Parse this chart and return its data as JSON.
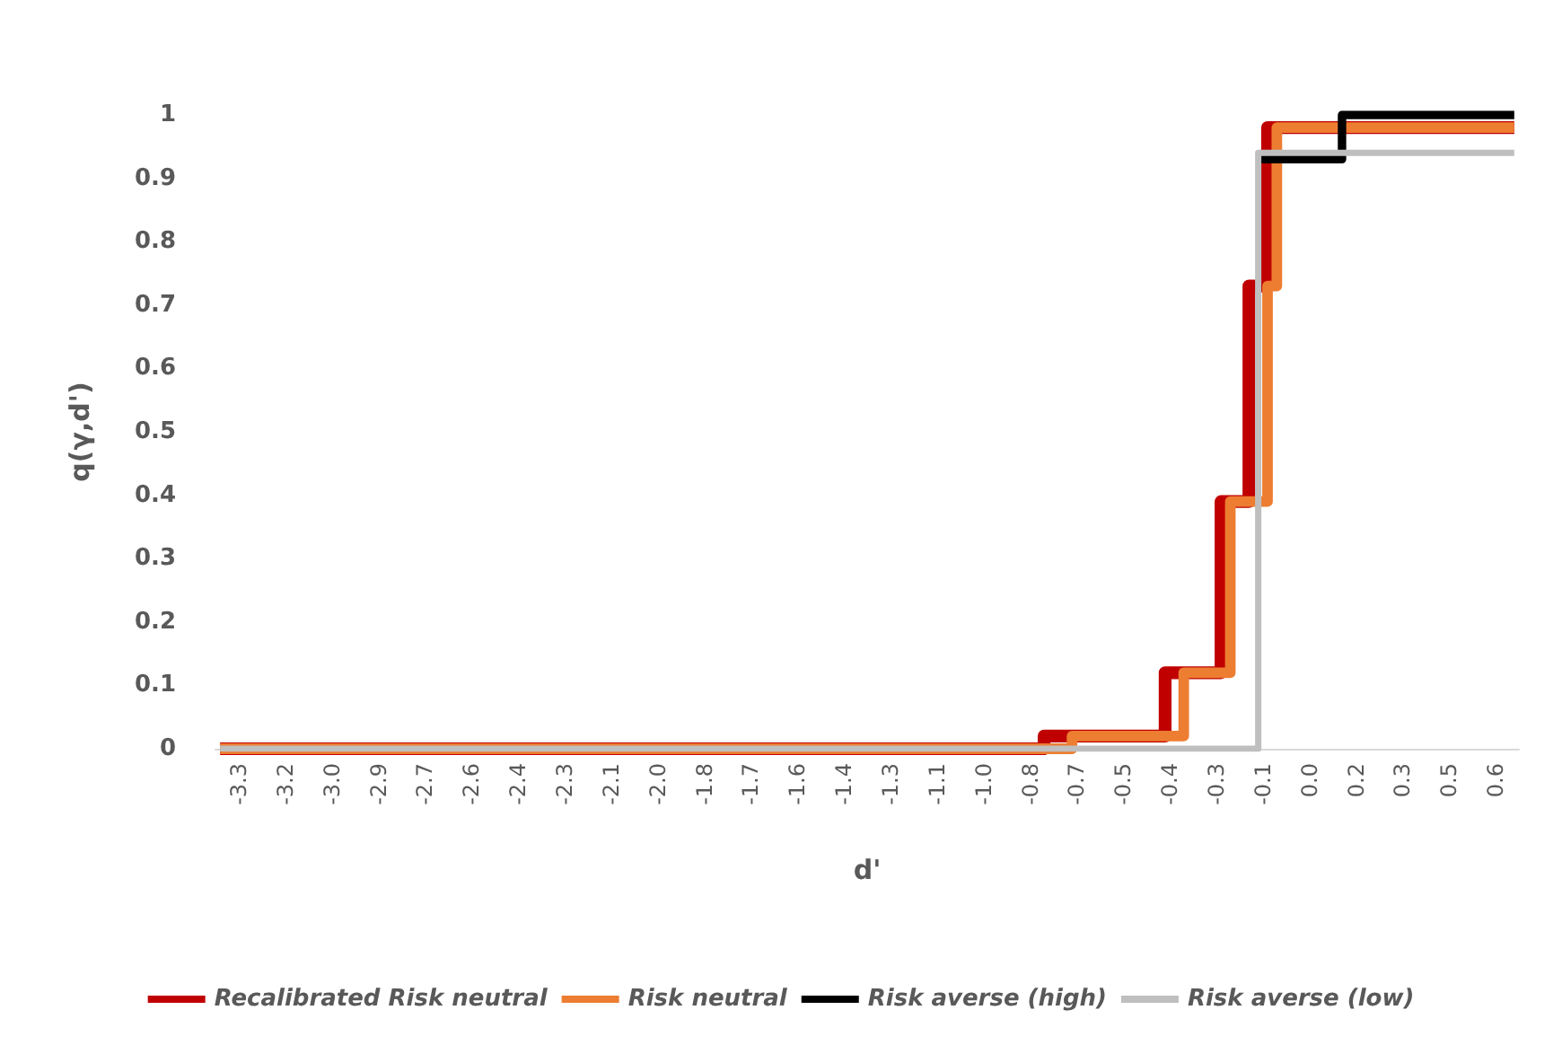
{
  "chart_data": {
    "type": "step",
    "xlabel": "d'",
    "ylabel": "q(γ,d')",
    "categories": [
      null,
      null,
      "-3.3",
      null,
      null,
      null,
      null,
      "-3.2",
      null,
      null,
      null,
      null,
      "-3.0",
      null,
      null,
      null,
      null,
      "-2.9",
      null,
      null,
      null,
      null,
      "-2.7",
      null,
      null,
      null,
      null,
      "-2.6",
      null,
      null,
      null,
      null,
      "-2.4",
      null,
      null,
      null,
      null,
      "-2.3",
      null,
      null,
      null,
      null,
      "-2.1",
      null,
      null,
      null,
      null,
      "-2.0",
      null,
      null,
      null,
      null,
      "-1.8",
      null,
      null,
      null,
      null,
      "-1.7",
      null,
      null,
      null,
      null,
      "-1.6",
      null,
      null,
      null,
      null,
      "-1.4",
      null,
      null,
      null,
      null,
      "-1.3",
      null,
      null,
      null,
      null,
      "-1.1",
      null,
      null,
      null,
      null,
      "-1.0",
      null,
      null,
      null,
      null,
      "-0.8",
      null,
      null,
      null,
      null,
      "-0.7",
      null,
      null,
      null,
      null,
      "-0.5",
      null,
      null,
      null,
      null,
      "-0.4",
      null,
      null,
      null,
      null,
      "-0.3",
      null,
      null,
      null,
      null,
      "-0.1",
      null,
      null,
      null,
      null,
      "0.0",
      null,
      null,
      null,
      null,
      "0.2",
      null,
      null,
      null,
      null,
      "0.3",
      null,
      null,
      null,
      null,
      "0.5",
      null,
      null,
      null,
      null,
      "0.6",
      null,
      null
    ],
    "series": [
      {
        "name": "Recalibrated Risk neutral",
        "color": "#c00000",
        "values": [
          0,
          0,
          0,
          0,
          0,
          0,
          0,
          0,
          0,
          0,
          0,
          0,
          0,
          0,
          0,
          0,
          0,
          0,
          0,
          0,
          0,
          0,
          0,
          0,
          0,
          0,
          0,
          0,
          0,
          0,
          0,
          0,
          0,
          0,
          0,
          0,
          0,
          0,
          0,
          0,
          0,
          0,
          0,
          0,
          0,
          0,
          0,
          0,
          0,
          0,
          0,
          0,
          0,
          0,
          0,
          0,
          0,
          0,
          0,
          0,
          0,
          0,
          0,
          0,
          0,
          0,
          0,
          0,
          0,
          0,
          0,
          0,
          0,
          0,
          0,
          0,
          0,
          0,
          0,
          0,
          0,
          0,
          0,
          0,
          0,
          0,
          0,
          0,
          0,
          0.02,
          0.02,
          0.02,
          0.02,
          0.02,
          0.02,
          0.02,
          0.02,
          0.02,
          0.02,
          0.02,
          0.02,
          0.02,
          0.12,
          0.12,
          0.12,
          0.12,
          0.12,
          0.12,
          0.39,
          0.39,
          0.39,
          0.73,
          0.73,
          0.98,
          0.98,
          0.98,
          0.98,
          0.98,
          0.98,
          0.98,
          0.98,
          0.98,
          0.98,
          0.98,
          0.98,
          0.98,
          0.98,
          0.98,
          0.98,
          0.98,
          0.98,
          0.98,
          0.98,
          0.98,
          0.98,
          0.98,
          0.98,
          0.98,
          0.98,
          0.98
        ]
      },
      {
        "name": "Risk neutral",
        "color": "#ed7d31",
        "values": [
          0,
          0,
          0,
          0,
          0,
          0,
          0,
          0,
          0,
          0,
          0,
          0,
          0,
          0,
          0,
          0,
          0,
          0,
          0,
          0,
          0,
          0,
          0,
          0,
          0,
          0,
          0,
          0,
          0,
          0,
          0,
          0,
          0,
          0,
          0,
          0,
          0,
          0,
          0,
          0,
          0,
          0,
          0,
          0,
          0,
          0,
          0,
          0,
          0,
          0,
          0,
          0,
          0,
          0,
          0,
          0,
          0,
          0,
          0,
          0,
          0,
          0,
          0,
          0,
          0,
          0,
          0,
          0,
          0,
          0,
          0,
          0,
          0,
          0,
          0,
          0,
          0,
          0,
          0,
          0,
          0,
          0,
          0,
          0,
          0,
          0,
          0,
          0,
          0,
          0,
          0,
          0,
          0.02,
          0.02,
          0.02,
          0.02,
          0.02,
          0.02,
          0.02,
          0.02,
          0.02,
          0.02,
          0.02,
          0.02,
          0.12,
          0.12,
          0.12,
          0.12,
          0.12,
          0.39,
          0.39,
          0.39,
          0.39,
          0.73,
          0.98,
          0.98,
          0.98,
          0.98,
          0.98,
          0.98,
          0.98,
          0.98,
          0.98,
          0.98,
          0.98,
          0.98,
          0.98,
          0.98,
          0.98,
          0.98,
          0.98,
          0.98,
          0.98,
          0.98,
          0.98,
          0.98,
          0.98,
          0.98,
          0.98,
          0.98
        ]
      },
      {
        "name": "Risk averse (high)",
        "color": "#000000",
        "values": [
          null,
          null,
          null,
          null,
          null,
          null,
          null,
          null,
          null,
          null,
          null,
          null,
          null,
          null,
          null,
          null,
          null,
          null,
          null,
          null,
          null,
          null,
          null,
          null,
          null,
          null,
          null,
          null,
          null,
          null,
          null,
          null,
          null,
          null,
          null,
          null,
          null,
          null,
          null,
          null,
          null,
          null,
          null,
          null,
          null,
          null,
          null,
          null,
          null,
          null,
          null,
          null,
          null,
          null,
          null,
          null,
          null,
          null,
          null,
          null,
          null,
          null,
          null,
          null,
          null,
          null,
          null,
          null,
          null,
          null,
          null,
          null,
          null,
          null,
          null,
          null,
          null,
          null,
          null,
          null,
          null,
          null,
          null,
          null,
          null,
          null,
          null,
          null,
          null,
          null,
          null,
          null,
          null,
          null,
          null,
          null,
          null,
          null,
          null,
          null,
          null,
          null,
          null,
          null,
          null,
          null,
          null,
          null,
          null,
          null,
          null,
          null,
          0.93,
          0.93,
          0.93,
          0.93,
          0.93,
          0.93,
          0.93,
          0.93,
          0.93,
          1,
          1,
          1,
          1,
          1,
          1,
          1,
          1,
          1,
          1,
          1,
          1,
          1,
          1,
          1,
          1,
          1,
          1,
          1
        ]
      },
      {
        "name": "Risk averse (low)",
        "color": "#bfbfbf",
        "values": [
          0,
          0,
          0,
          0,
          0,
          0,
          0,
          0,
          0,
          0,
          0,
          0,
          0,
          0,
          0,
          0,
          0,
          0,
          0,
          0,
          0,
          0,
          0,
          0,
          0,
          0,
          0,
          0,
          0,
          0,
          0,
          0,
          0,
          0,
          0,
          0,
          0,
          0,
          0,
          0,
          0,
          0,
          0,
          0,
          0,
          0,
          0,
          0,
          0,
          0,
          0,
          0,
          0,
          0,
          0,
          0,
          0,
          0,
          0,
          0,
          0,
          0,
          0,
          0,
          0,
          0,
          0,
          0,
          0,
          0,
          0,
          0,
          0,
          0,
          0,
          0,
          0,
          0,
          0,
          0,
          0,
          0,
          0,
          0,
          0,
          0,
          0,
          0,
          0,
          0,
          0,
          0,
          0,
          0,
          0,
          0,
          0,
          0,
          0,
          0,
          0,
          0,
          0,
          0,
          0,
          0,
          0,
          0,
          0,
          0,
          0,
          0,
          0.94,
          0.94,
          0.94,
          0.94,
          0.94,
          0.94,
          0.94,
          0.94,
          0.94,
          0.94,
          0.94,
          0.94,
          0.94,
          0.94,
          0.94,
          0.94,
          0.94,
          0.94,
          0.94,
          0.94,
          0.94,
          0.94,
          0.94,
          0.94,
          0.94,
          0.94,
          0.94,
          0.94
        ]
      }
    ],
    "ylim": [
      0,
      1
    ],
    "yticks": [
      0,
      0.1,
      0.2,
      0.3,
      0.4,
      0.5,
      0.6,
      0.7,
      0.8,
      0.9,
      1
    ],
    "legend": "bottom"
  }
}
